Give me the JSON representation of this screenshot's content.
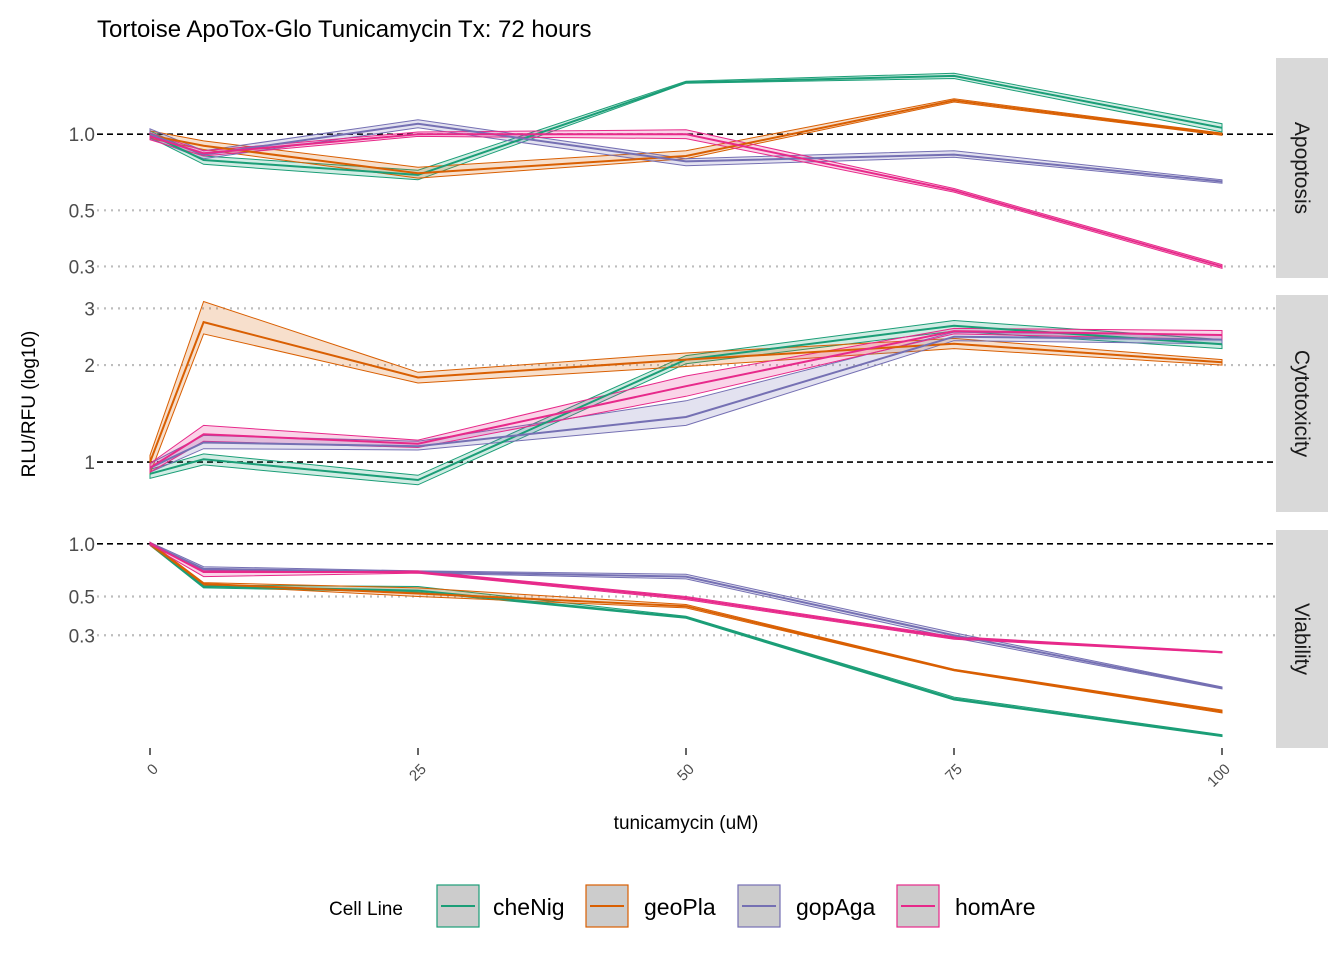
{
  "chart_data": {
    "type": "line",
    "title": "Tortoise ApoTox-Glo Tunicamycin Tx: 72 hours",
    "xlabel": "tunicamycin (uM)",
    "ylabel": "RLU/RFU (log10)",
    "x_ticks": [
      "0",
      "25",
      "50",
      "75",
      "100"
    ],
    "x": [
      0,
      5,
      25,
      50,
      75,
      100
    ],
    "xlim": [
      0,
      100
    ],
    "legend": {
      "title": "Cell Line",
      "position": "bottom",
      "entries": [
        "cheNig",
        "geoPla",
        "gopAga",
        "homAre"
      ]
    },
    "colors": {
      "cheNig": "#1b9e77",
      "geoPla": "#d95f02",
      "gopAga": "#7570b3",
      "homAre": "#e7298a"
    },
    "y_scale": "log10",
    "reference_line": 1,
    "facets": [
      {
        "label": "Apoptosis",
        "y_ticks": [
          "1.0",
          "0.5",
          "0.3"
        ],
        "y_tick_values": [
          1.0,
          0.5,
          0.3
        ],
        "ylim": [
          0.27,
          2.0
        ],
        "series": [
          {
            "name": "cheNig",
            "values": [
              1.0,
              0.79,
              0.69,
              1.6,
              1.7,
              1.06
            ],
            "lower": [
              0.97,
              0.76,
              0.66,
              1.59,
              1.66,
              1.02
            ],
            "upper": [
              1.03,
              0.82,
              0.72,
              1.62,
              1.74,
              1.1
            ]
          },
          {
            "name": "geoPla",
            "values": [
              0.99,
              0.9,
              0.7,
              0.82,
              1.36,
              1.0
            ],
            "lower": [
              0.96,
              0.87,
              0.67,
              0.8,
              1.34,
              0.99
            ],
            "upper": [
              1.03,
              0.94,
              0.74,
              0.86,
              1.38,
              1.01
            ]
          },
          {
            "name": "gopAga",
            "values": [
              1.0,
              0.83,
              1.1,
              0.78,
              0.83,
              0.65
            ],
            "lower": [
              0.96,
              0.8,
              1.06,
              0.75,
              0.81,
              0.64
            ],
            "upper": [
              1.05,
              0.86,
              1.14,
              0.8,
              0.86,
              0.66
            ]
          },
          {
            "name": "homAre",
            "values": [
              0.98,
              0.84,
              1.0,
              1.0,
              0.6,
              0.3
            ],
            "lower": [
              0.95,
              0.82,
              0.98,
              0.96,
              0.59,
              0.295
            ],
            "upper": [
              1.01,
              0.86,
              1.02,
              1.04,
              0.61,
              0.305
            ]
          }
        ]
      },
      {
        "label": "Cytotoxicity",
        "y_ticks": [
          "3",
          "2",
          "1"
        ],
        "y_tick_values": [
          3,
          2,
          1
        ],
        "ylim": [
          0.7,
          3.3
        ],
        "series": [
          {
            "name": "cheNig",
            "values": [
              0.92,
              1.02,
              0.88,
              2.08,
              2.65,
              2.32
            ],
            "lower": [
              0.89,
              0.98,
              0.85,
              2.02,
              2.55,
              2.25
            ],
            "upper": [
              0.95,
              1.06,
              0.91,
              2.14,
              2.75,
              2.4
            ]
          },
          {
            "name": "geoPla",
            "values": [
              1.0,
              2.72,
              1.83,
              2.08,
              2.33,
              2.04
            ],
            "lower": [
              0.92,
              2.5,
              1.76,
              1.98,
              2.25,
              2.0
            ],
            "upper": [
              1.05,
              3.15,
              1.9,
              2.18,
              2.42,
              2.08
            ]
          },
          {
            "name": "gopAga",
            "values": [
              0.96,
              1.15,
              1.12,
              1.38,
              2.45,
              2.4
            ],
            "lower": [
              0.93,
              1.1,
              1.09,
              1.3,
              2.38,
              2.33
            ],
            "upper": [
              0.99,
              1.21,
              1.16,
              1.55,
              2.53,
              2.48
            ]
          },
          {
            "name": "homAre",
            "values": [
              0.96,
              1.22,
              1.14,
              1.72,
              2.55,
              2.48
            ],
            "lower": [
              0.93,
              1.16,
              1.11,
              1.6,
              2.5,
              2.4
            ],
            "upper": [
              0.99,
              1.3,
              1.17,
              1.85,
              2.6,
              2.56
            ]
          }
        ]
      },
      {
        "label": "Viability",
        "y_ticks": [
          "1.0",
          "0.5",
          "0.3"
        ],
        "y_tick_values": [
          1.0,
          0.5,
          0.3
        ],
        "ylim": [
          0.068,
          1.2
        ],
        "series": [
          {
            "name": "cheNig",
            "values": [
              1.0,
              0.57,
              0.54,
              0.38,
              0.13,
              0.08
            ],
            "lower": [
              0.98,
              0.56,
              0.53,
              0.375,
              0.128,
              0.079
            ],
            "upper": [
              1.02,
              0.58,
              0.57,
              0.385,
              0.133,
              0.081
            ]
          },
          {
            "name": "geoPla",
            "values": [
              1.0,
              0.59,
              0.52,
              0.44,
              0.19,
              0.11
            ],
            "lower": [
              0.98,
              0.58,
              0.5,
              0.43,
              0.188,
              0.108
            ],
            "upper": [
              1.02,
              0.6,
              0.56,
              0.45,
              0.192,
              0.112
            ]
          },
          {
            "name": "gopAga",
            "values": [
              1.0,
              0.72,
              0.69,
              0.65,
              0.3,
              0.15
            ],
            "lower": [
              0.98,
              0.71,
              0.68,
              0.63,
              0.29,
              0.148
            ],
            "upper": [
              1.02,
              0.74,
              0.7,
              0.67,
              0.31,
              0.152
            ]
          },
          {
            "name": "homAre",
            "values": [
              1.0,
              0.69,
              0.69,
              0.49,
              0.29,
              0.24
            ],
            "lower": [
              0.98,
              0.65,
              0.68,
              0.48,
              0.285,
              0.238
            ],
            "upper": [
              1.02,
              0.7,
              0.7,
              0.5,
              0.295,
              0.242
            ]
          }
        ]
      }
    ]
  }
}
